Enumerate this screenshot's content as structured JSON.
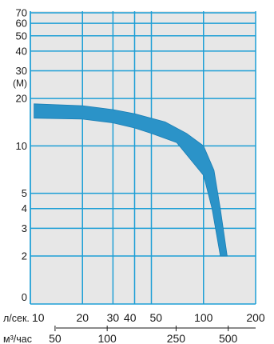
{
  "chart_data": {
    "type": "area",
    "ylabel": "(M)",
    "xlabel": "л/сек.",
    "x2label": "м³/час",
    "x_scale": "log",
    "y_scale": "log",
    "xlim": [
      10,
      200
    ],
    "ylim": [
      2,
      70
    ],
    "x_ticks": [
      10,
      20,
      30,
      40,
      50,
      100,
      200
    ],
    "x_tick_labels": [
      "10",
      "20",
      "30",
      "40",
      "50",
      "100",
      "200"
    ],
    "x2_ticks": [
      50,
      100,
      250,
      500
    ],
    "x2_tick_labels": [
      "50",
      "100",
      "250",
      "500"
    ],
    "y_ticks": [
      2,
      3,
      4,
      5,
      10,
      20,
      30,
      40,
      50,
      60,
      70
    ],
    "y_tick_labels": [
      "2",
      "3",
      "4",
      "5",
      "10",
      "20",
      "30",
      "40",
      "50",
      "60",
      "70"
    ],
    "zero_label": "0",
    "grid": true,
    "band": {
      "upper": [
        {
          "x": 10.5,
          "y": 18.5
        },
        {
          "x": 20,
          "y": 18.0
        },
        {
          "x": 30,
          "y": 17.0
        },
        {
          "x": 40,
          "y": 16.0
        },
        {
          "x": 50,
          "y": 15.0
        },
        {
          "x": 60,
          "y": 14.2
        },
        {
          "x": 80,
          "y": 12.0
        },
        {
          "x": 100,
          "y": 10.0
        },
        {
          "x": 115,
          "y": 7.0
        },
        {
          "x": 125,
          "y": 4.0
        },
        {
          "x": 137,
          "y": 2.0
        }
      ],
      "lower": [
        {
          "x": 10.5,
          "y": 15.0
        },
        {
          "x": 20,
          "y": 14.8
        },
        {
          "x": 30,
          "y": 14.0
        },
        {
          "x": 40,
          "y": 13.0
        },
        {
          "x": 50,
          "y": 12.0
        },
        {
          "x": 70,
          "y": 10.5
        },
        {
          "x": 100,
          "y": 6.5
        },
        {
          "x": 112,
          "y": 4.0
        },
        {
          "x": 125,
          "y": 2.0
        }
      ]
    },
    "colors": {
      "plot_bg": "#e7e7e7",
      "grid": "#1e9fd6",
      "band": "#2b93c8",
      "band_edge": "#1b7fb5",
      "text": "#1a1a1a",
      "accent": "#1e9fd6"
    }
  }
}
